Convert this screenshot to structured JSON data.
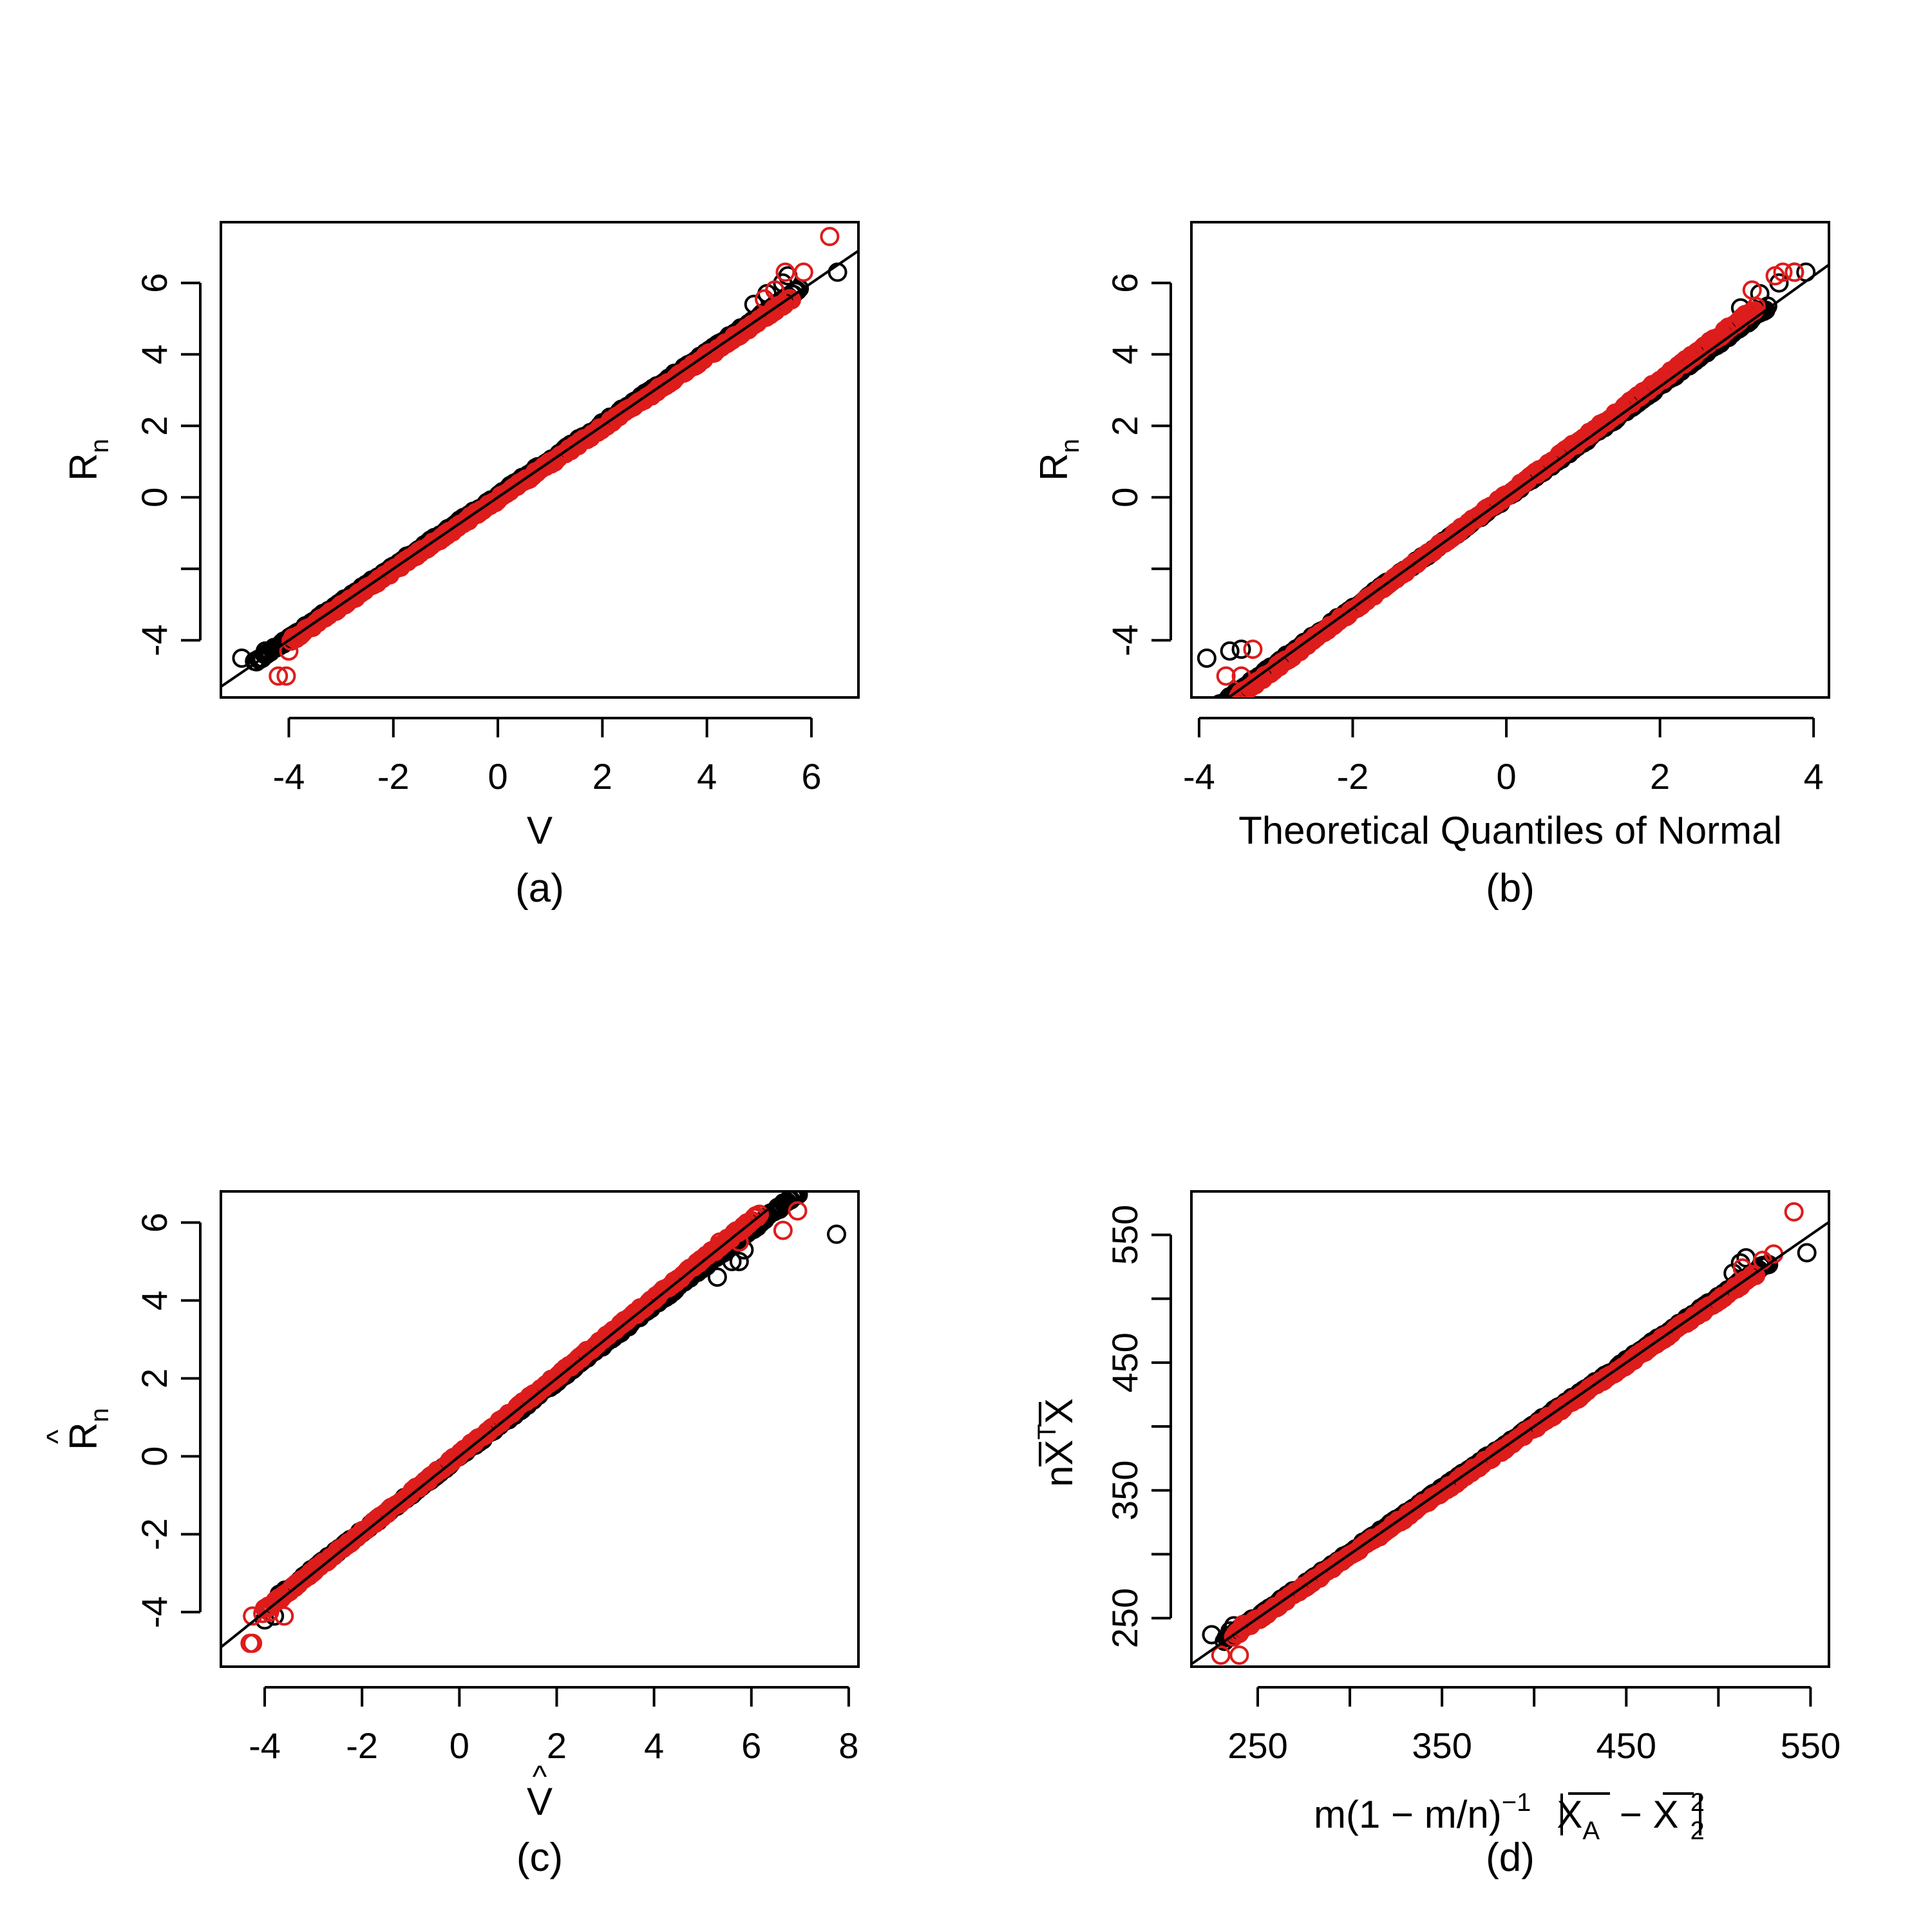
{
  "colors": {
    "black_series": "#000000",
    "red_series": "#dd1c1c",
    "line": "#000000"
  },
  "chart_data": [
    {
      "id": "a",
      "type": "scatter",
      "caption": "(a)",
      "xlabel": "V",
      "ylabel_main": "R",
      "ylabel_sub": "n",
      "ylabel_hat": "",
      "xlim": [
        -5.3,
        6.9
      ],
      "ylim": [
        -5.6,
        7.7
      ],
      "xticks": [
        -4,
        -2,
        0,
        2,
        4,
        6
      ],
      "xtick_labels": [
        "-4",
        "-2",
        "0",
        "2",
        "4",
        "6"
      ],
      "yticks": [
        -4,
        -2,
        0,
        2,
        4,
        6
      ],
      "ytick_labels": [
        "-4",
        "",
        "0",
        "2",
        "4",
        "6"
      ],
      "reference_line": {
        "slope": 1,
        "intercept": 0
      },
      "series": [
        {
          "color": "black",
          "slope": 1.0,
          "intercept": 0.05,
          "tail": [
            [
              -4.9,
              -4.5
            ],
            [
              -4.45,
              -4.3
            ],
            [
              -4.3,
              -4.25
            ],
            [
              -4.1,
              -4.1
            ],
            [
              4.9,
              5.4
            ],
            [
              5.15,
              5.7
            ],
            [
              5.3,
              5.8
            ],
            [
              5.45,
              6.0
            ],
            [
              5.55,
              6.2
            ],
            [
              6.5,
              6.3
            ]
          ]
        },
        {
          "color": "red",
          "slope": 1.0,
          "intercept": -0.05,
          "tail": [
            [
              -4.2,
              -5.0
            ],
            [
              -4.05,
              -5.0
            ],
            [
              -4.0,
              -4.3
            ],
            [
              5.1,
              5.55
            ],
            [
              5.3,
              5.8
            ],
            [
              5.5,
              6.3
            ],
            [
              5.85,
              6.3
            ],
            [
              6.35,
              7.3
            ]
          ]
        }
      ]
    },
    {
      "id": "b",
      "type": "scatter",
      "caption": "(b)",
      "xlabel": "Theoretical Quantiles of Normal",
      "ylabel_main": "R",
      "ylabel_sub": "n",
      "ylabel_hat": "",
      "xlim": [
        -4.1,
        4.2
      ],
      "ylim": [
        -5.6,
        7.7
      ],
      "xticks": [
        -4,
        -2,
        0,
        2,
        4
      ],
      "xtick_labels": [
        "-4",
        "-2",
        "0",
        "2",
        "4"
      ],
      "yticks": [
        -4,
        -2,
        0,
        2,
        4,
        6
      ],
      "ytick_labels": [
        "-4",
        "",
        "0",
        "2",
        "4",
        "6"
      ],
      "reference_line": {
        "slope": 1.55,
        "intercept": 0
      },
      "series": [
        {
          "color": "black",
          "slope": 1.55,
          "intercept": 0.0,
          "tail": [
            [
              -3.9,
              -4.5
            ],
            [
              -3.6,
              -4.3
            ],
            [
              -3.45,
              -4.25
            ],
            [
              3.05,
              5.3
            ],
            [
              3.3,
              5.7
            ],
            [
              3.55,
              6.0
            ],
            [
              3.75,
              6.3
            ],
            [
              3.9,
              6.3
            ]
          ]
        },
        {
          "color": "red",
          "slope": 1.6,
          "intercept": 0.05,
          "tail": [
            [
              -3.65,
              -5.0
            ],
            [
              -3.45,
              -5.0
            ],
            [
              -3.3,
              -4.25
            ],
            [
              3.2,
              5.8
            ],
            [
              3.5,
              6.2
            ],
            [
              3.6,
              6.3
            ],
            [
              3.75,
              6.3
            ]
          ]
        }
      ]
    },
    {
      "id": "c",
      "type": "scatter",
      "caption": "(c)",
      "xlabel": "V",
      "ylabel_main": "R",
      "ylabel_sub": "n",
      "ylabel_hat": "^",
      "xlim": [
        -4.9,
        8.2
      ],
      "ylim": [
        -5.4,
        6.8
      ],
      "xticks": [
        -4,
        -2,
        0,
        2,
        4,
        6,
        8
      ],
      "xtick_labels": [
        "-4",
        "-2",
        "0",
        "2",
        "4",
        "6",
        "8"
      ],
      "yticks": [
        -4,
        -2,
        0,
        2,
        4,
        6
      ],
      "ytick_labels": [
        "-4",
        "-2",
        "0",
        "2",
        "4",
        "6"
      ],
      "reference_line": {
        "slope": 1,
        "intercept": 0
      },
      "series": [
        {
          "color": "black",
          "slope": 0.97,
          "intercept": 0.0,
          "tail": [
            [
              -4.0,
              -4.2
            ],
            [
              -3.8,
              -4.1
            ],
            [
              5.3,
              4.6
            ],
            [
              5.6,
              5.0
            ],
            [
              5.75,
              5.0
            ],
            [
              5.85,
              5.3
            ],
            [
              7.75,
              5.7
            ]
          ]
        },
        {
          "color": "red",
          "slope": 1.0,
          "intercept": 0.05,
          "tail": [
            [
              -4.3,
              -4.8
            ],
            [
              -4.25,
              -4.8
            ],
            [
              -4.25,
              -4.1
            ],
            [
              -3.9,
              -4.0
            ],
            [
              -3.6,
              -4.1
            ],
            [
              5.35,
              5.5
            ],
            [
              5.75,
              5.5
            ],
            [
              5.8,
              5.8
            ],
            [
              6.65,
              5.8
            ],
            [
              6.95,
              6.3
            ]
          ]
        }
      ]
    },
    {
      "id": "d",
      "type": "scatter",
      "caption": "(d)",
      "xlabel_parts": [
        "m",
        "(1 − m/n)",
        "−1",
        "X",
        "A",
        "X",
        "2",
        "2"
      ],
      "ylabel_parts": [
        "n",
        "X",
        "T",
        "X"
      ],
      "xlim": [
        214,
        560
      ],
      "ylim": [
        212,
        584
      ],
      "xticks": [
        250,
        300,
        350,
        400,
        450,
        500,
        550
      ],
      "xtick_labels": [
        "250",
        "",
        "350",
        "",
        "450",
        "",
        "550"
      ],
      "yticks": [
        250,
        300,
        350,
        400,
        450,
        500,
        550
      ],
      "ytick_labels": [
        "250",
        "",
        "350",
        "",
        "450",
        "",
        "550"
      ],
      "reference_line": {
        "slope": 1,
        "intercept": 0
      },
      "series": [
        {
          "color": "black",
          "slope": 1.0,
          "intercept": 1.0,
          "tail": [
            [
              225,
              237
            ],
            [
              235,
              240
            ],
            [
              237,
              244
            ],
            [
              508,
              520
            ],
            [
              512,
              528
            ],
            [
              515,
              532
            ],
            [
              548,
              536
            ]
          ]
        },
        {
          "color": "red",
          "slope": 1.0,
          "intercept": -1.0,
          "tail": [
            [
              230,
              221
            ],
            [
              240,
              221
            ],
            [
              242,
              245
            ],
            [
              513,
              524
            ],
            [
              524,
              530
            ],
            [
              530,
              535
            ],
            [
              541,
              568
            ]
          ]
        }
      ]
    }
  ]
}
